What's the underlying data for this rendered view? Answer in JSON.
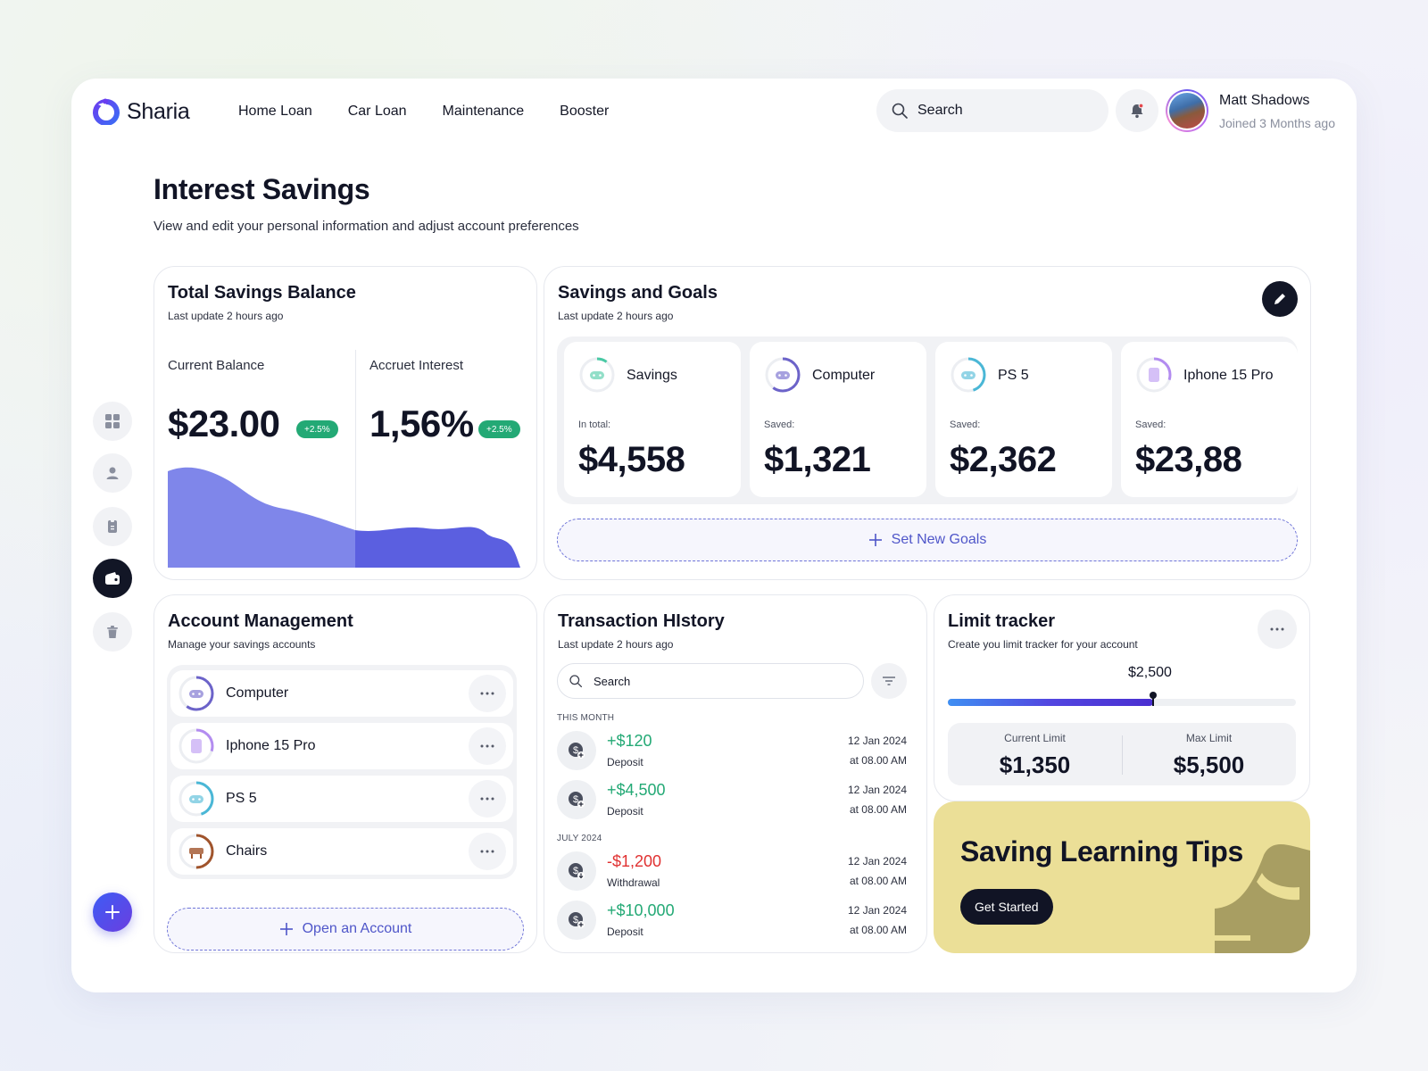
{
  "brand": {
    "name": "Sharia"
  },
  "nav": [
    "Home Loan",
    "Car Loan",
    "Maintenance",
    "Booster"
  ],
  "search": {
    "placeholder": "Search"
  },
  "user": {
    "name": "Matt Shadows",
    "subtitle": "Joined 3 Months ago"
  },
  "page": {
    "title": "Interest Savings",
    "subtitle": "View and edit your personal information and adjust account preferences"
  },
  "total_savings": {
    "title": "Total Savings Balance",
    "subtitle": "Last update 2 hours ago",
    "current_label": "Current Balance",
    "current_value": "$23.00",
    "current_badge": "+2.5%",
    "interest_label": "Accruet Interest",
    "interest_value": "1,56%",
    "interest_badge": "+2.5%"
  },
  "goals": {
    "title": "Savings and Goals",
    "subtitle": "Last update 2 hours ago",
    "items": [
      {
        "name": "Savings",
        "label": "In total:",
        "value": "$4,558",
        "color": "#49c9a4",
        "progress": 0.1
      },
      {
        "name": "Computer",
        "label": "Saved:",
        "value": "$1,321",
        "color": "#6c63c9",
        "progress": 0.6
      },
      {
        "name": "PS 5",
        "label": "Saved:",
        "value": "$2,362",
        "color": "#4ab7d6",
        "progress": 0.45
      },
      {
        "name": "Iphone 15 Pro",
        "label": "Saved:",
        "value": "$23,88",
        "color": "#b38cf0",
        "progress": 0.3
      }
    ],
    "new_goal_label": "Set New Goals"
  },
  "accounts": {
    "title": "Account Management",
    "subtitle": "Manage your savings accounts",
    "items": [
      {
        "name": "Computer",
        "color": "#6c63c9",
        "progress": 0.6
      },
      {
        "name": "Iphone 15 Pro",
        "color": "#b38cf0",
        "progress": 0.3
      },
      {
        "name": "PS 5",
        "color": "#4ab7d6",
        "progress": 0.45
      },
      {
        "name": "Chairs",
        "color": "#a0542c",
        "progress": 0.5
      }
    ],
    "open_label": "Open an Account"
  },
  "transactions": {
    "title": "Transaction HIstory",
    "subtitle": "Last update 2 hours ago",
    "search_placeholder": "Search",
    "sections": [
      {
        "label": "THIS MONTH",
        "items": [
          {
            "amount": "+$120",
            "type": "Deposit",
            "date": "12 Jan 2024",
            "time": "at 08.00 AM",
            "kind": "in"
          },
          {
            "amount": "+$4,500",
            "type": "Deposit",
            "date": "12 Jan 2024",
            "time": "at 08.00 AM",
            "kind": "in"
          }
        ]
      },
      {
        "label": "JULY 2024",
        "items": [
          {
            "amount": "-$1,200",
            "type": "Withdrawal",
            "date": "12 Jan 2024",
            "time": "at 08.00 AM",
            "kind": "out"
          },
          {
            "amount": "+$10,000",
            "type": "Deposit",
            "date": "12 Jan 2024",
            "time": "at 08.00 AM",
            "kind": "in"
          }
        ]
      }
    ]
  },
  "limit": {
    "title": "Limit tracker",
    "subtitle": "Create you limit tracker for your account",
    "value": "$2,500",
    "progress": 0.59,
    "current_label": "Current Limit",
    "current_value": "$1,350",
    "max_label": "Max Limit",
    "max_value": "$5,500"
  },
  "tips": {
    "title": "Saving Learning Tips",
    "button": "Get Started"
  },
  "colors": {
    "accent": "#4f56c9",
    "positive": "#23a975",
    "negative": "#e03131",
    "chart_light": "#7f86ea",
    "chart_dark": "#5b5fe0",
    "tips_bg": "#ebdf97"
  }
}
